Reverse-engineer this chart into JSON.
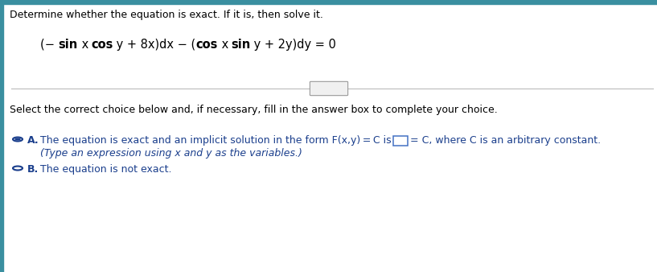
{
  "background_color": "#ffffff",
  "top_bar_color": "#3a8fa0",
  "left_bar_color": "#3a8fa0",
  "title_text": "Determine whether the equation is exact. If it is, then solve it.",
  "title_color": "#000000",
  "title_fontsize": 9.0,
  "eq_pieces": [
    [
      "(− ",
      false
    ],
    [
      "sin",
      true
    ],
    [
      " x ",
      false
    ],
    [
      "cos",
      true
    ],
    [
      " y + 8x)dx − (",
      false
    ],
    [
      "cos",
      true
    ],
    [
      " x ",
      false
    ],
    [
      "sin",
      true
    ],
    [
      " y + 2y)dy = 0",
      false
    ]
  ],
  "eq_color": "#000000",
  "eq_fontsize": 10.5,
  "divider_color": "#bbbbbb",
  "dots_text": "...",
  "select_text": "Select the correct choice below and, if necessary, fill in the answer box to complete your choice.",
  "select_color": "#000000",
  "select_fontsize": 9.0,
  "option_color": "#1a3e8c",
  "option_a_line1_pre": "The equation is exact and an implicit solution in the form F(x,y) = C is",
  "option_a_line1_post": "= C, where C is an arbitrary constant.",
  "option_a_line2": "(Type an expression using x and y as the variables.)",
  "option_b_text": "The equation is not exact.",
  "radio_color": "#1a3e8c",
  "answer_box_color": "#4472c4",
  "fig_width": 8.17,
  "fig_height": 3.38,
  "dpi": 100
}
